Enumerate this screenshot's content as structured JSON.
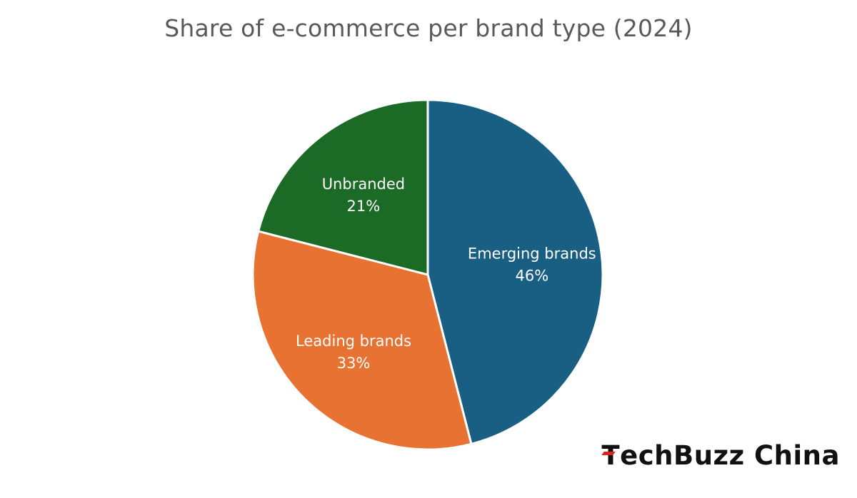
{
  "title": "Share of e-commerce per brand type (2024)",
  "chart_data": {
    "type": "pie",
    "title": "Share of e-commerce per brand type (2024)",
    "slices": [
      {
        "name": "Emerging brands",
        "value": 46,
        "label": "46%",
        "color": "#185f83"
      },
      {
        "name": "Leading brands",
        "value": 33,
        "label": "33%",
        "color": "#e87231"
      },
      {
        "name": "Unbranded",
        "value": 21,
        "label": "21%",
        "color": "#1b6a26"
      }
    ],
    "start_angle_deg": 0,
    "direction": "clockwise",
    "legend": "none",
    "data_labels": "inside"
  },
  "logo": {
    "text": "TechBuzz China",
    "accent_color": "#e0201d"
  }
}
